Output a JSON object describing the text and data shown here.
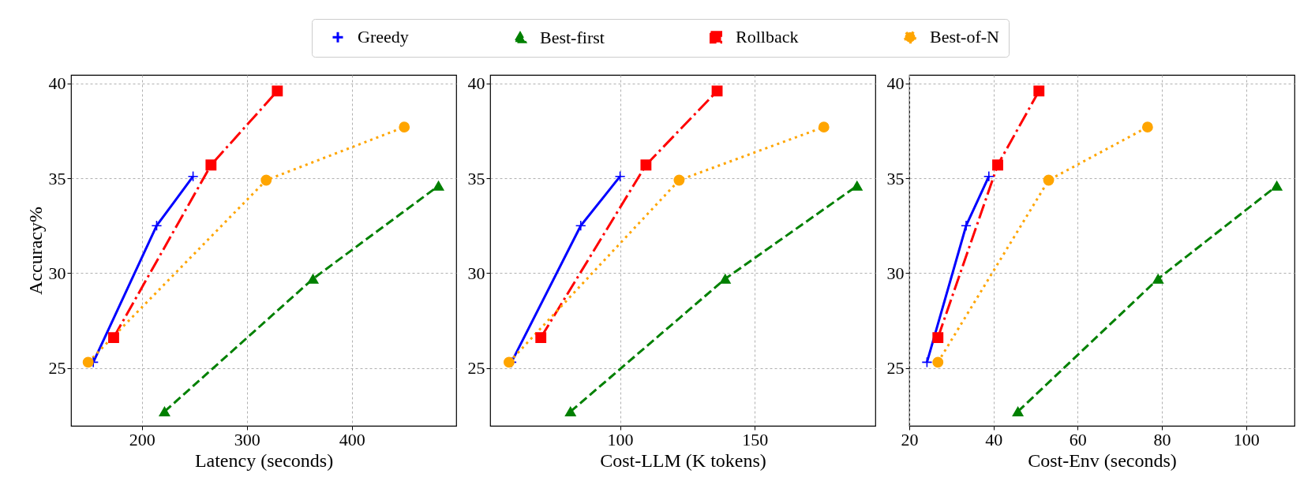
{
  "chart_data": [
    {
      "type": "line",
      "xlabel": "Latency (seconds)",
      "ylabel": "Accuracy%",
      "xlim": [
        132.4,
        499.5
      ],
      "xticks": [
        200,
        300,
        400
      ],
      "ylim": [
        21.95,
        40.45
      ],
      "yticks": [
        25,
        30,
        35,
        40
      ],
      "grid": true,
      "legend": "top",
      "series": [
        {
          "name": "Greedy",
          "color": "#0000ff",
          "marker": "cross",
          "line_style": "solid",
          "x": [
            153.6,
            214,
            248.7
          ],
          "values": [
            25.3,
            32.5,
            35.1
          ]
        },
        {
          "name": "Best-first",
          "color": "#008000",
          "marker": "triangle",
          "line_style": "dashed",
          "x": [
            221.5,
            363,
            482.6
          ],
          "values": [
            22.7,
            29.7,
            34.6
          ]
        },
        {
          "name": "Rollback",
          "color": "#ff0000",
          "marker": "square",
          "line_style": "dashdot",
          "x": [
            173,
            265.8,
            329
          ],
          "values": [
            26.6,
            35.7,
            39.6
          ]
        },
        {
          "name": "Best-of-N",
          "color": "#ffa500",
          "marker": "circle",
          "line_style": "dotted",
          "x": [
            148.7,
            318.4,
            450
          ],
          "values": [
            25.3,
            34.9,
            37.7
          ]
        }
      ]
    },
    {
      "type": "line",
      "xlabel": "Cost-LLM (K tokens)",
      "xlim": [
        51.8,
        194.7
      ],
      "xticks": [
        100,
        150
      ],
      "ylim": [
        21.95,
        40.45
      ],
      "yticks": [
        25,
        30,
        35,
        40
      ],
      "grid": true,
      "series": [
        {
          "name": "Greedy",
          "color": "#0000ff",
          "marker": "cross",
          "line_style": "solid",
          "x": [
            59.7,
            85.4,
            100
          ],
          "values": [
            25.3,
            32.5,
            35.1
          ]
        },
        {
          "name": "Best-first",
          "color": "#008000",
          "marker": "triangle",
          "line_style": "dashed",
          "x": [
            81.6,
            139,
            187.9
          ],
          "values": [
            22.7,
            29.7,
            34.6
          ]
        },
        {
          "name": "Rollback",
          "color": "#ff0000",
          "marker": "square",
          "line_style": "dashdot",
          "x": [
            70.6,
            109.6,
            136
          ],
          "values": [
            26.6,
            35.7,
            39.6
          ]
        },
        {
          "name": "Best-of-N",
          "color": "#ffa500",
          "marker": "circle",
          "line_style": "dotted",
          "x": [
            58.8,
            121.9,
            175.6
          ],
          "values": [
            25.3,
            34.9,
            37.7
          ]
        }
      ]
    },
    {
      "type": "line",
      "xlabel": "Cost-Env (seconds)",
      "xlim": [
        20,
        111.5
      ],
      "xticks": [
        20,
        40,
        60,
        80,
        100
      ],
      "ylim": [
        21.95,
        40.45
      ],
      "yticks": [
        25,
        30,
        35,
        40
      ],
      "grid": true,
      "series": [
        {
          "name": "Greedy",
          "color": "#0000ff",
          "marker": "cross",
          "line_style": "solid",
          "x": [
            24.2,
            33.5,
            38.9
          ],
          "values": [
            25.3,
            32.5,
            35.1
          ]
        },
        {
          "name": "Best-first",
          "color": "#008000",
          "marker": "triangle",
          "line_style": "dashed",
          "x": [
            45.8,
            79.1,
            107.3
          ],
          "values": [
            22.7,
            29.7,
            34.6
          ]
        },
        {
          "name": "Rollback",
          "color": "#ff0000",
          "marker": "square",
          "line_style": "dashdot",
          "x": [
            26.8,
            41,
            50.8
          ],
          "values": [
            26.6,
            35.7,
            39.6
          ]
        },
        {
          "name": "Best-of-N",
          "color": "#ffa500",
          "marker": "circle",
          "line_style": "dotted",
          "x": [
            26.8,
            53.1,
            76.6
          ],
          "values": [
            25.3,
            34.9,
            37.7
          ]
        }
      ]
    }
  ]
}
